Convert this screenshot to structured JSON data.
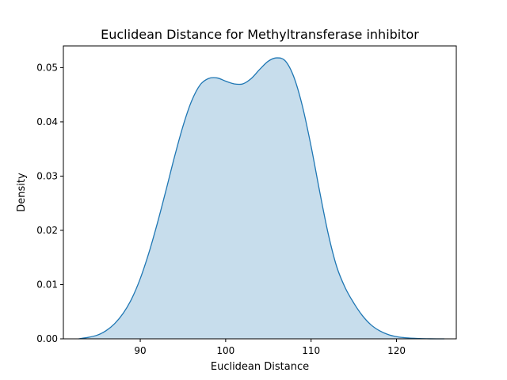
{
  "chart_data": {
    "type": "area",
    "title": "Euclidean Distance for Methyltransferase inhibitor",
    "xlabel": "Euclidean Distance",
    "ylabel": "Density",
    "xlim": [
      81.0,
      127.0
    ],
    "ylim": [
      0.0,
      0.054
    ],
    "x_ticks": [
      90,
      100,
      110,
      120
    ],
    "x_tick_labels": [
      "90",
      "100",
      "110",
      "120"
    ],
    "y_ticks": [
      0.0,
      0.01,
      0.02,
      0.03,
      0.04,
      0.05
    ],
    "y_tick_labels": [
      "0.00",
      "0.01",
      "0.02",
      "0.03",
      "0.04",
      "0.05"
    ],
    "grid": false,
    "colors": {
      "line": "#1f77b4",
      "fill": "#1f77b4",
      "fill_opacity": 0.25
    },
    "series": [
      {
        "x": [
          82.8,
          84,
          85,
          86,
          87,
          88,
          89,
          90,
          91,
          92,
          93,
          94,
          95,
          96,
          97,
          98,
          99,
          100,
          101,
          102,
          103,
          104,
          105,
          106,
          107,
          108,
          109,
          110,
          111,
          112,
          113,
          114,
          115,
          116,
          117,
          118,
          119,
          120,
          121,
          122,
          123,
          124,
          125.6
        ],
        "y": [
          0.0,
          0.0003,
          0.0007,
          0.0015,
          0.0028,
          0.0047,
          0.0074,
          0.0111,
          0.0158,
          0.0213,
          0.0273,
          0.0335,
          0.0392,
          0.0438,
          0.0468,
          0.048,
          0.0481,
          0.0475,
          0.047,
          0.047,
          0.048,
          0.0497,
          0.0512,
          0.0518,
          0.0512,
          0.0482,
          0.0428,
          0.0355,
          0.0272,
          0.0194,
          0.0133,
          0.0094,
          0.0066,
          0.0043,
          0.0026,
          0.0015,
          0.0008,
          0.0004,
          0.0002,
          0.0001,
          4e-05,
          1e-05,
          0.0
        ]
      }
    ]
  }
}
